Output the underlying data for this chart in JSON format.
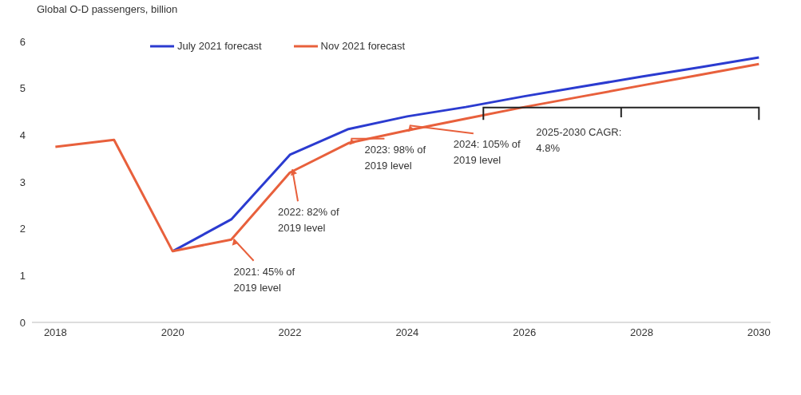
{
  "chart_data": {
    "type": "line",
    "ylabel": "Global O-D passengers, billion",
    "x": [
      2018,
      2019,
      2020,
      2021,
      2022,
      2023,
      2024,
      2025,
      2026,
      2027,
      2028,
      2029,
      2030
    ],
    "series": [
      {
        "name": "July 2021 forecast",
        "color": "#2b3bd0",
        "values": [
          null,
          null,
          1.52,
          2.2,
          3.58,
          4.13,
          4.4,
          4.6,
          4.83,
          5.04,
          5.25,
          5.45,
          5.66
        ]
      },
      {
        "name": "Nov 2021 forecast",
        "color": "#e8603c",
        "values": [
          3.75,
          3.9,
          1.52,
          1.77,
          3.2,
          3.83,
          4.1,
          4.35,
          4.6,
          4.83,
          5.06,
          5.29,
          5.52
        ]
      }
    ],
    "xlim": [
      2017.6,
      2030.2
    ],
    "xticks": [
      2018,
      2020,
      2022,
      2024,
      2026,
      2028,
      2030
    ],
    "ylim": [
      0,
      6
    ],
    "yticks": [
      0,
      1,
      2,
      3,
      4,
      5,
      6
    ],
    "grid": false,
    "legend": "top",
    "marker": "none",
    "line_style": "solid",
    "annotations": [
      {
        "text": "2021: 45% of 2019 level",
        "x": 2021,
        "y": 1.77
      },
      {
        "text": "2022: 82% of 2019 level",
        "x": 2022,
        "y": 3.2
      },
      {
        "text": "2023: 98% of 2019 level",
        "x": 2023,
        "y": 3.83
      },
      {
        "text": "2024: 105% of 2019 level",
        "x": 2024,
        "y": 4.1
      },
      "2025-2030 CAGR: 4.8%"
    ]
  }
}
